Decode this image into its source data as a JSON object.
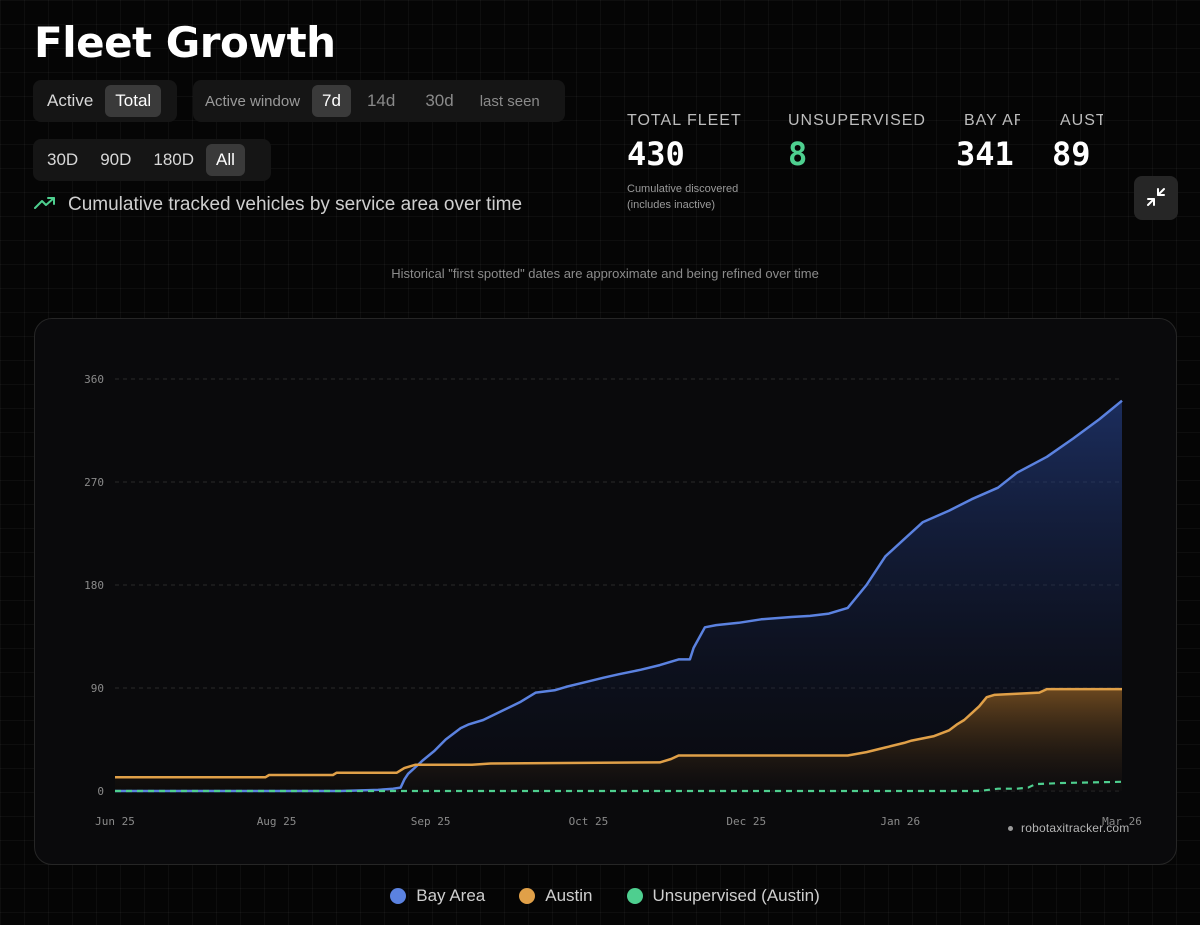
{
  "page": {
    "title": "Fleet Growth",
    "subtitle": "Cumulative tracked vehicles by service area over time",
    "disclaimer": "Historical \"first spotted\" dates are approximate and being refined over time",
    "watermark": "robotaxitracker.com"
  },
  "mode_toggle": {
    "active": "Active",
    "total": "Total",
    "selected": "Total"
  },
  "active_window": {
    "label": "Active window",
    "options": [
      "7d",
      "14d",
      "30d",
      "last seen"
    ],
    "selected": "7d"
  },
  "range_toggle": {
    "options": [
      "30D",
      "90D",
      "180D",
      "All"
    ],
    "selected": "All"
  },
  "stats": {
    "total": {
      "label": "TOTAL FLEET",
      "value": "430",
      "note_line1": "Cumulative discovered",
      "note_line2": "(includes inactive)"
    },
    "unsupervised": {
      "label": "UNSUPERVISED",
      "value": "8"
    },
    "bay": {
      "label": "BAY AREA",
      "value": "341"
    },
    "austin": {
      "label": "AUSTIN",
      "value": "89"
    }
  },
  "colors": {
    "bay": "#5b82e0",
    "austin": "#e0a048",
    "unsupervised": "#4ecf8f"
  },
  "icons": {
    "trend": "trending-up-icon",
    "collapse": "collapse-icon"
  },
  "chart_data": {
    "type": "area",
    "title": "",
    "xlabel": "",
    "ylabel": "",
    "ylim": [
      0,
      360
    ],
    "yticks": [
      0,
      90,
      180,
      270,
      360
    ],
    "xlim": [
      0,
      268
    ],
    "xticks": [
      {
        "label": "Jun 25",
        "x": 0
      },
      {
        "label": "Aug 25",
        "x": 43
      },
      {
        "label": "Sep 25",
        "x": 84
      },
      {
        "label": "Oct 25",
        "x": 126
      },
      {
        "label": "Dec 25",
        "x": 168
      },
      {
        "label": "Jan 26",
        "x": 209
      },
      {
        "label": "Mar 26",
        "x": 275
      }
    ],
    "grid": true,
    "series": [
      {
        "name": "Bay Area",
        "color": "#5b82e0",
        "style": "solid-area",
        "x": [
          0,
          60,
          70,
          74,
          76,
          77,
          78,
          79,
          80,
          81,
          82,
          85,
          88,
          92,
          94,
          98,
          103,
          108,
          112,
          117,
          120,
          125,
          130,
          134,
          140,
          145,
          150,
          153,
          154,
          157,
          160,
          166,
          172,
          180,
          185,
          190,
          195,
          200,
          205,
          210,
          215,
          222,
          228,
          235,
          240,
          248,
          255,
          262,
          268
        ],
        "values": [
          0,
          0,
          1,
          2,
          3,
          10,
          15,
          18,
          21,
          24,
          27,
          35,
          45,
          55,
          58,
          62,
          70,
          78,
          86,
          88,
          91,
          95,
          99,
          102,
          106,
          110,
          115,
          115,
          125,
          143,
          145,
          147,
          150,
          152,
          153,
          155,
          160,
          180,
          205,
          220,
          235,
          245,
          255,
          265,
          278,
          292,
          308,
          325,
          341
        ]
      },
      {
        "name": "Austin",
        "color": "#e0a048",
        "style": "solid-area",
        "x": [
          0,
          40,
          41,
          58,
          59,
          75,
          77,
          79,
          80,
          95,
          100,
          145,
          148,
          150,
          195,
          200,
          205,
          210,
          212,
          218,
          222,
          224,
          226,
          228,
          230,
          232,
          234,
          240,
          246,
          248,
          268
        ],
        "values": [
          12,
          12,
          14,
          14,
          16,
          16,
          20,
          22,
          23,
          23,
          24,
          25,
          28,
          31,
          31,
          34,
          38,
          42,
          44,
          48,
          53,
          58,
          62,
          68,
          74,
          82,
          84,
          85,
          86,
          89,
          89
        ]
      },
      {
        "name": "Unsupervised (Austin)",
        "color": "#4ecf8f",
        "style": "dashed",
        "x": [
          0,
          230,
          235,
          240,
          243,
          245,
          252,
          268
        ],
        "values": [
          0,
          0,
          2,
          2,
          3,
          6,
          7,
          8
        ]
      }
    ]
  }
}
